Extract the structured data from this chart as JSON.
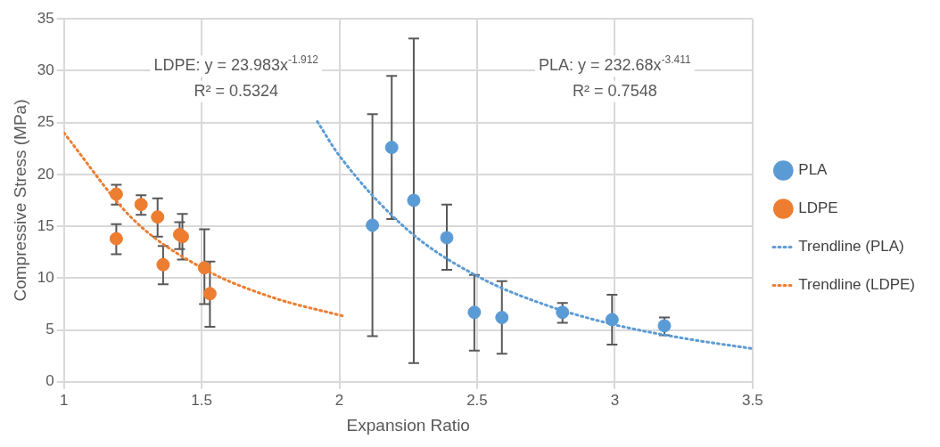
{
  "chart_data": {
    "type": "scatter",
    "xlabel": "Expansion Ratio",
    "ylabel": "Compressive Stress (MPa)",
    "xlim": [
      1,
      3.5
    ],
    "xticks": [
      1,
      1.5,
      2,
      2.5,
      3,
      3.5
    ],
    "ylim": [
      0,
      35
    ],
    "yticks": [
      0,
      5,
      10,
      15,
      20,
      25,
      30,
      35
    ],
    "grid": true,
    "legend": "right",
    "marker": "circle",
    "annotations": [
      "LDPE: y = 23.983x$^{-1.912}$",
      "R² = 0.5324",
      "PLA: y = 232.68x$^{-3.411}$",
      "R² = 0.7548"
    ],
    "series": [
      {
        "name": "PLA",
        "type": "scatter",
        "color": "#5b9bd5",
        "x": [
          2.12,
          2.19,
          2.27,
          2.39,
          2.49,
          2.59,
          2.81,
          2.99,
          3.18
        ],
        "values": [
          15.1,
          22.6,
          17.5,
          13.9,
          6.7,
          6.2,
          6.7,
          6.0,
          5.4
        ],
        "errors": [
          [
            4.4,
            25.8
          ],
          [
            15.7,
            29.5
          ],
          [
            1.8,
            33.1
          ],
          [
            10.8,
            17.1
          ],
          [
            3.0,
            10.3
          ],
          [
            2.7,
            9.7
          ],
          [
            5.7,
            7.6
          ],
          [
            3.6,
            8.4
          ],
          [
            4.5,
            6.2
          ]
        ]
      },
      {
        "name": "LDPE",
        "type": "scatter",
        "color": "#ed7d31",
        "x": [
          1.19,
          1.19,
          1.28,
          1.34,
          1.36,
          1.42,
          1.43,
          1.51,
          1.53
        ],
        "values": [
          18.1,
          13.8,
          17.1,
          15.9,
          11.3,
          14.2,
          14.0,
          11.0,
          8.5
        ],
        "errors": [
          [
            17.1,
            19.0
          ],
          [
            12.3,
            15.2
          ],
          [
            16.1,
            18.0
          ],
          [
            14.0,
            17.7
          ],
          [
            9.4,
            13.1
          ],
          [
            12.8,
            15.4
          ],
          [
            11.8,
            16.2
          ],
          [
            7.5,
            14.7
          ],
          [
            5.3,
            11.6
          ]
        ]
      },
      {
        "name": "Trendline (PLA)",
        "type": "line",
        "line_style": "dotted",
        "marker": "none",
        "color": "#5b9bd5",
        "x": [
          1.92,
          2.0,
          2.25,
          2.5,
          2.75,
          3.0,
          3.25,
          3.5
        ],
        "values": [
          25.1,
          21.8,
          14.6,
          10.2,
          7.4,
          5.5,
          4.2,
          3.2
        ]
      },
      {
        "name": "Trendline (LDPE)",
        "type": "line",
        "line_style": "dotted",
        "marker": "none",
        "color": "#ed7d31",
        "x": [
          1.0,
          1.25,
          1.5,
          1.75,
          2.02
        ],
        "values": [
          24.0,
          15.7,
          11.0,
          8.2,
          6.3
        ]
      }
    ]
  }
}
